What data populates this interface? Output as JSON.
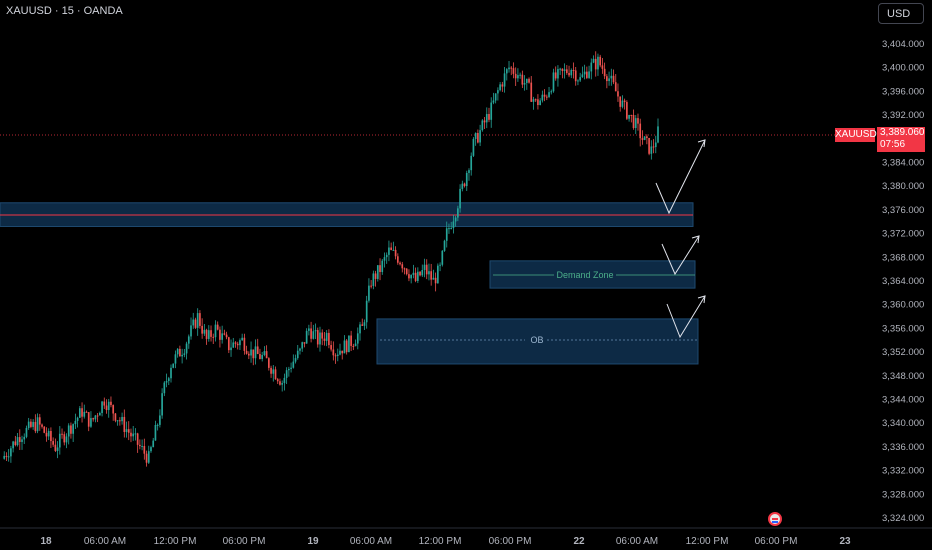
{
  "header": {
    "symbol": "XAUUSD · 15 · OANDA"
  },
  "currency_label": "USD",
  "price_axis_labels": [
    "3,404.000",
    "3,400.000",
    "3,396.000",
    "3,392.000",
    "3,388.000",
    "3,384.000",
    "3,380.000",
    "3,376.000",
    "3,372.000",
    "3,368.000",
    "3,364.000",
    "3,360.000",
    "3,356.000",
    "3,352.000",
    "3,348.000",
    "3,344.000",
    "3,340.000",
    "3,336.000",
    "3,332.000",
    "3,328.000",
    "3,324.000"
  ],
  "current_price": {
    "symbol": "XAUUSD",
    "price": "3,389.060",
    "countdown": "07:56"
  },
  "zone_labels": {
    "demand": "Demand Zone",
    "ob": "OB"
  },
  "time_axis": [
    {
      "label": "18",
      "bold": true
    },
    {
      "label": "06:00 AM"
    },
    {
      "label": "12:00 PM"
    },
    {
      "label": "06:00 PM"
    },
    {
      "label": "19",
      "bold": true
    },
    {
      "label": "06:00 AM"
    },
    {
      "label": "12:00 PM"
    },
    {
      "label": "06:00 PM"
    },
    {
      "label": "22",
      "bold": true
    },
    {
      "label": "06:00 AM"
    },
    {
      "label": "12:00 PM"
    },
    {
      "label": "06:00 PM"
    },
    {
      "label": "23",
      "bold": true
    }
  ],
  "colors": {
    "up": "#26a69a",
    "down": "#ef5350",
    "zone": "#0d2a45",
    "zone_border": "#1e4a70",
    "accent": "#f23645"
  },
  "chart_data": {
    "type": "candlestick",
    "symbol": "XAUUSD",
    "interval": "15",
    "ylim": [
      3322,
      3408
    ],
    "close_path": [
      [
        0,
        3334
      ],
      [
        8,
        3338
      ],
      [
        16,
        3340
      ],
      [
        24,
        3336
      ],
      [
        30,
        3339
      ],
      [
        36,
        3342
      ],
      [
        40,
        3340
      ],
      [
        46,
        3344
      ],
      [
        52,
        3341
      ],
      [
        58,
        3338
      ],
      [
        62,
        3336
      ],
      [
        66,
        3334
      ],
      [
        70,
        3340
      ],
      [
        73,
        3346
      ],
      [
        76,
        3350
      ],
      [
        82,
        3353
      ],
      [
        88,
        3358
      ],
      [
        92,
        3354
      ],
      [
        96,
        3356
      ],
      [
        102,
        3353
      ],
      [
        108,
        3354
      ],
      [
        112,
        3352
      ],
      [
        118,
        3351
      ],
      [
        122,
        3349
      ],
      [
        126,
        3347
      ],
      [
        130,
        3350
      ],
      [
        134,
        3352
      ],
      [
        138,
        3356
      ],
      [
        142,
        3354
      ],
      [
        146,
        3355
      ],
      [
        150,
        3352
      ],
      [
        154,
        3353
      ],
      [
        158,
        3354
      ],
      [
        162,
        3356
      ],
      [
        166,
        3364
      ],
      [
        170,
        3366
      ],
      [
        174,
        3369
      ],
      [
        178,
        3368
      ],
      [
        182,
        3366
      ],
      [
        186,
        3364
      ],
      [
        190,
        3366
      ],
      [
        194,
        3364
      ],
      [
        197,
        3366
      ],
      [
        200,
        3372
      ],
      [
        204,
        3376
      ],
      [
        208,
        3381
      ],
      [
        212,
        3387
      ],
      [
        216,
        3390
      ],
      [
        220,
        3393
      ],
      [
        224,
        3397
      ],
      [
        228,
        3400
      ],
      [
        232,
        3399
      ],
      [
        236,
        3397
      ],
      [
        240,
        3394
      ],
      [
        244,
        3395
      ],
      [
        248,
        3398
      ],
      [
        252,
        3399
      ],
      [
        256,
        3400
      ],
      [
        260,
        3398
      ],
      [
        264,
        3400
      ],
      [
        268,
        3401
      ],
      [
        272,
        3399
      ],
      [
        276,
        3396
      ],
      [
        280,
        3393
      ],
      [
        284,
        3391
      ],
      [
        288,
        3388
      ],
      [
        292,
        3386
      ],
      [
        295,
        3389
      ]
    ],
    "current_price": 3389.06,
    "zones": [
      {
        "name": "upper-zone",
        "price_top": 3377.2,
        "price_bottom": 3373.2
      },
      {
        "name": "Demand Zone",
        "price_top": 3367.4,
        "price_bottom": 3362.8
      },
      {
        "name": "OB",
        "price_top": 3357.6,
        "price_bottom": 3350.0
      }
    ]
  }
}
